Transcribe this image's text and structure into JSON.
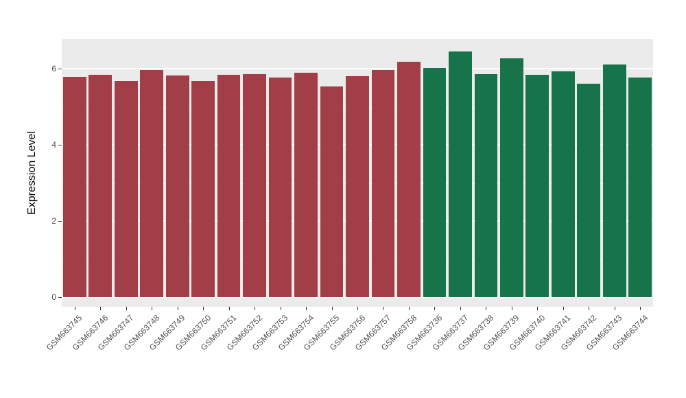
{
  "chart_data": {
    "type": "bar",
    "title": "",
    "xlabel": "",
    "ylabel": "Expression Level",
    "ylim": [
      0,
      6.6
    ],
    "yticks": [
      0,
      2,
      4,
      6
    ],
    "yticks_minor": [
      1,
      3,
      5
    ],
    "grid": true,
    "legend_position": "none",
    "panel_background": "#EBEBEB",
    "group_colors": {
      "group_a": "#A23E48",
      "group_b": "#17734A"
    },
    "categories": [
      "GSM663745",
      "GSM663746",
      "GSM663747",
      "GSM663748",
      "GSM663749",
      "GSM663750",
      "GSM663751",
      "GSM663752",
      "GSM663753",
      "GSM663754",
      "GSM663755",
      "GSM663756",
      "GSM663757",
      "GSM663758",
      "GSM663736",
      "GSM663737",
      "GSM663738",
      "GSM663739",
      "GSM663740",
      "GSM663741",
      "GSM663742",
      "GSM663743",
      "GSM663744"
    ],
    "values": [
      5.78,
      5.83,
      5.67,
      5.97,
      5.82,
      5.68,
      5.84,
      5.85,
      5.77,
      5.9,
      5.53,
      5.81,
      5.96,
      6.18,
      6.02,
      6.45,
      5.86,
      6.27,
      5.84,
      5.93,
      5.61,
      6.1,
      5.77
    ],
    "bar_colors": [
      "#A23E48",
      "#A23E48",
      "#A23E48",
      "#A23E48",
      "#A23E48",
      "#A23E48",
      "#A23E48",
      "#A23E48",
      "#A23E48",
      "#A23E48",
      "#A23E48",
      "#A23E48",
      "#A23E48",
      "#A23E48",
      "#17734A",
      "#17734A",
      "#17734A",
      "#17734A",
      "#17734A",
      "#17734A",
      "#17734A",
      "#17734A",
      "#17734A"
    ]
  }
}
